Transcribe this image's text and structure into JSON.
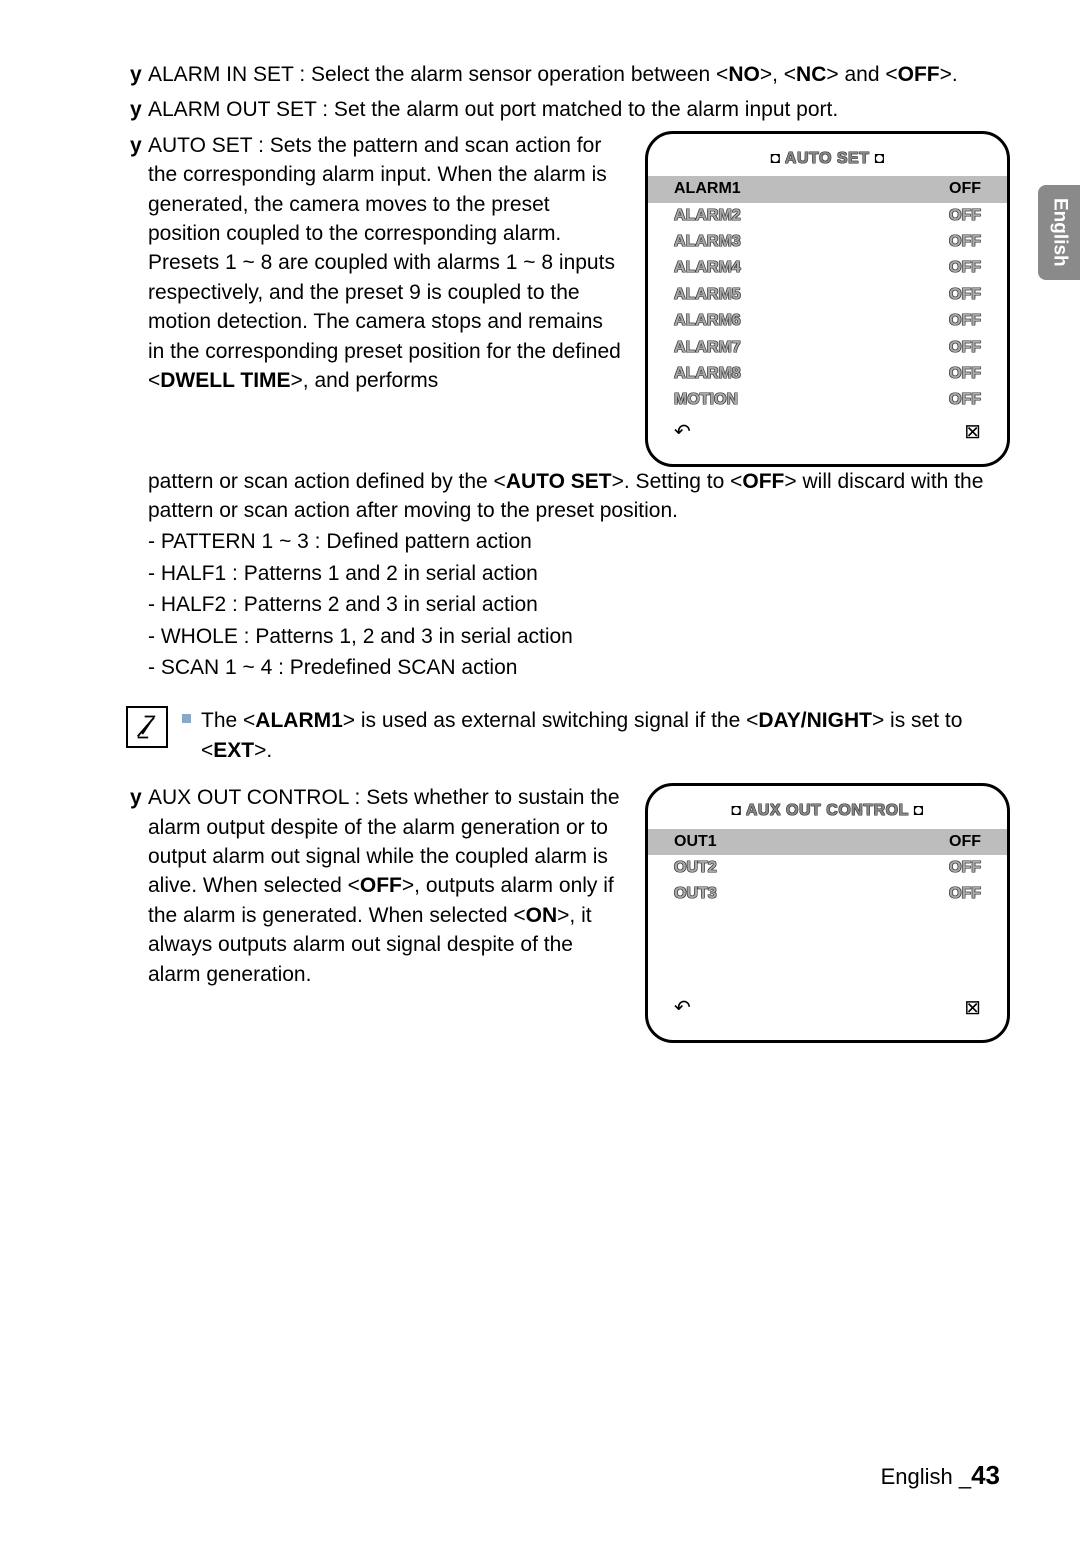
{
  "sideTab": "English",
  "p1": {
    "y": "y",
    "label": "ALARM IN SET : Select the alarm sensor operation between <",
    "b1": "NO",
    "mid1": ">, <",
    "b2": "NC",
    "mid2": "> and <",
    "b3": "OFF",
    "end": ">."
  },
  "p2": {
    "y": "y",
    "text": "ALARM OUT SET : Set the alarm out port matched to the alarm input port."
  },
  "p3": {
    "y": "y",
    "l1": "AUTO SET : Sets the pattern and scan",
    "l2": "action for the corresponding alarm",
    "l3": "input. When the alarm is generated, the",
    "l4": "camera moves to the preset position",
    "l5": "coupled to the corresponding alarm.",
    "l6": "Presets 1 ~ 8 are coupled with alarms",
    "l7": "1 ~ 8 inputs respectively, and the preset",
    "l8": "9 is coupled to the motion detection.",
    "l9": "The camera stops and remains in the",
    "l10": "corresponding preset position for the",
    "l11a": "defined <",
    "l11b": "DWELL TIME",
    "l11c": ">, and performs"
  },
  "p3b": {
    "a": "pattern or scan action defined by the <",
    "b": "AUTO SET",
    "c": ">. Setting to <",
    "d": "OFF",
    "e": "> will discard with the pattern or scan action after moving to the preset position."
  },
  "sub": {
    "s1": "- PATTERN 1 ~ 3 : Defined pattern action",
    "s2": "- HALF1 : Patterns 1 and 2 in serial action",
    "s3": "- HALF2 : Patterns 2 and 3 in serial action",
    "s4": "- WHOLE : Patterns 1, 2 and 3 in serial action",
    "s5": "- SCAN 1 ~ 4 : Predefined SCAN action"
  },
  "note": {
    "a": "The <",
    "b": "ALARM1",
    "c": "> is used as external switching signal if the <",
    "d": "DAY/NIGHT",
    "e": "> is set to <",
    "f": "EXT",
    "g": ">."
  },
  "p4": {
    "y": "y",
    "l1": "AUX OUT CONTROL : Sets whether to",
    "l2": "sustain the alarm output despite of the",
    "l3": "alarm generation or to output alarm out",
    "l4": "signal while the coupled alarm is alive.",
    "l5a": "When selected <",
    "l5b": "OFF",
    "l5c": ">, outputs alarm",
    "l6": "only if the alarm is generated. When",
    "l7a": "selected <",
    "l7b": "ON",
    "l7c": ">, it always outputs",
    "l8": "alarm out signal despite of the alarm",
    "l9": "generation."
  },
  "osd1": {
    "title": "AUTO SET",
    "rows": [
      {
        "k": "ALARM1",
        "v": "OFF",
        "sel": true
      },
      {
        "k": "ALARM2",
        "v": "OFF"
      },
      {
        "k": "ALARM3",
        "v": "OFF"
      },
      {
        "k": "ALARM4",
        "v": "OFF"
      },
      {
        "k": "ALARM5",
        "v": "OFF"
      },
      {
        "k": "ALARM6",
        "v": "OFF"
      },
      {
        "k": "ALARM7",
        "v": "OFF"
      },
      {
        "k": "ALARM8",
        "v": "OFF"
      },
      {
        "k": "MOTION",
        "v": "OFF"
      }
    ],
    "back": "↶",
    "close": "⊠"
  },
  "osd2": {
    "title": "AUX OUT CONTROL",
    "rows": [
      {
        "k": "OUT1",
        "v": "OFF",
        "sel": true
      },
      {
        "k": "OUT2",
        "v": "OFF"
      },
      {
        "k": "OUT3",
        "v": "OFF"
      }
    ],
    "back": "↶",
    "close": "⊠"
  },
  "footer": {
    "lang": "English _",
    "page": "43"
  }
}
